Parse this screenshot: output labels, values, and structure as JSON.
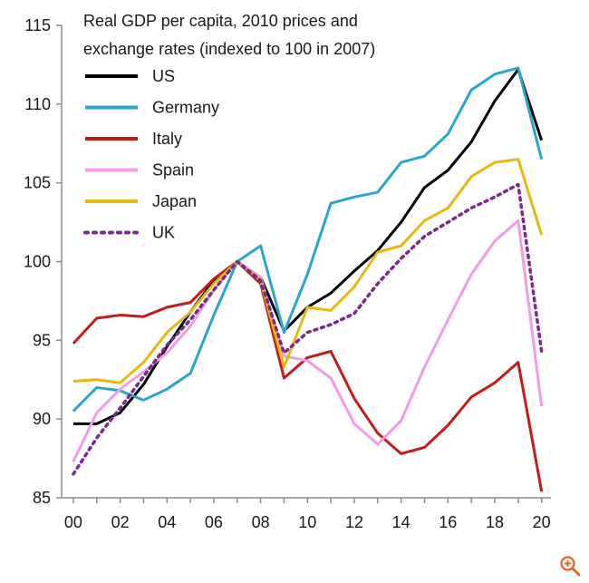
{
  "chart_data": {
    "type": "line",
    "title_lines": [
      "Real GDP per capita, 2010 prices and",
      "exchange rates (indexed to 100 in 2007)"
    ],
    "xlabel": "",
    "ylabel": "",
    "x": [
      2000,
      2001,
      2002,
      2003,
      2004,
      2005,
      2006,
      2007,
      2008,
      2009,
      2010,
      2011,
      2012,
      2013,
      2014,
      2015,
      2016,
      2017,
      2018,
      2019,
      2020
    ],
    "xlim": [
      1999.5,
      2020.4
    ],
    "ylim": [
      85,
      115
    ],
    "x_ticks": [
      {
        "value": 2000,
        "label": "00"
      },
      {
        "value": 2002,
        "label": "02"
      },
      {
        "value": 2004,
        "label": "04"
      },
      {
        "value": 2006,
        "label": "06"
      },
      {
        "value": 2008,
        "label": "08"
      },
      {
        "value": 2010,
        "label": "10"
      },
      {
        "value": 2012,
        "label": "12"
      },
      {
        "value": 2014,
        "label": "14"
      },
      {
        "value": 2016,
        "label": "16"
      },
      {
        "value": 2018,
        "label": "18"
      },
      {
        "value": 2020,
        "label": "20"
      }
    ],
    "y_ticks": [
      {
        "value": 85,
        "label": "85"
      },
      {
        "value": 90,
        "label": "90"
      },
      {
        "value": 95,
        "label": "95"
      },
      {
        "value": 100,
        "label": "100"
      },
      {
        "value": 105,
        "label": "105"
      },
      {
        "value": 110,
        "label": "110"
      },
      {
        "value": 115,
        "label": "115"
      }
    ],
    "grid": false,
    "legend_position": "top-left",
    "series": [
      {
        "name": "US",
        "color": "#000000",
        "dash": "solid",
        "values": [
          89.7,
          89.7,
          90.4,
          92.2,
          94.6,
          96.8,
          98.8,
          100.0,
          99.0,
          95.6,
          97.1,
          98.0,
          99.4,
          100.7,
          102.5,
          104.7,
          105.8,
          107.6,
          110.2,
          112.2,
          107.7
        ]
      },
      {
        "name": "Germany",
        "color": "#2aa6cd",
        "dash": "solid",
        "values": [
          90.5,
          92.0,
          91.8,
          91.2,
          91.9,
          92.9,
          96.6,
          100.0,
          101.0,
          95.5,
          99.2,
          103.7,
          104.1,
          104.4,
          106.3,
          106.7,
          108.1,
          110.9,
          111.9,
          112.3,
          106.5
        ]
      },
      {
        "name": "Italy",
        "color": "#c41a1a",
        "dash": "solid",
        "values": [
          94.8,
          96.4,
          96.6,
          96.5,
          97.1,
          97.4,
          98.9,
          100.0,
          98.6,
          92.6,
          93.9,
          94.3,
          91.3,
          89.1,
          87.8,
          88.2,
          89.6,
          91.4,
          92.3,
          93.6,
          85.4
        ]
      },
      {
        "name": "Spain",
        "color": "#f29be6",
        "dash": "solid",
        "values": [
          87.3,
          90.4,
          91.9,
          93.0,
          94.2,
          95.9,
          98.2,
          100.0,
          99.0,
          94.0,
          93.7,
          92.6,
          89.7,
          88.4,
          89.9,
          93.3,
          96.3,
          99.2,
          101.3,
          102.6,
          90.8
        ]
      },
      {
        "name": "Japan",
        "color": "#e6b814",
        "dash": "solid",
        "values": [
          92.4,
          92.5,
          92.3,
          93.6,
          95.5,
          96.8,
          98.6,
          100.0,
          98.8,
          93.3,
          97.1,
          96.9,
          98.4,
          100.6,
          101.0,
          102.6,
          103.4,
          105.4,
          106.3,
          106.5,
          101.7
        ]
      },
      {
        "name": "UK",
        "color": "#7a2a8c",
        "dash": "dotted",
        "values": [
          86.5,
          88.8,
          90.7,
          92.7,
          94.7,
          96.3,
          98.2,
          100.0,
          98.8,
          94.2,
          95.5,
          96.0,
          96.7,
          98.6,
          100.2,
          101.6,
          102.5,
          103.4,
          104.1,
          104.9,
          94.3
        ]
      }
    ]
  },
  "ui": {
    "zoom_icon": "zoom-in-icon",
    "zoom_color": "#e8611a"
  }
}
